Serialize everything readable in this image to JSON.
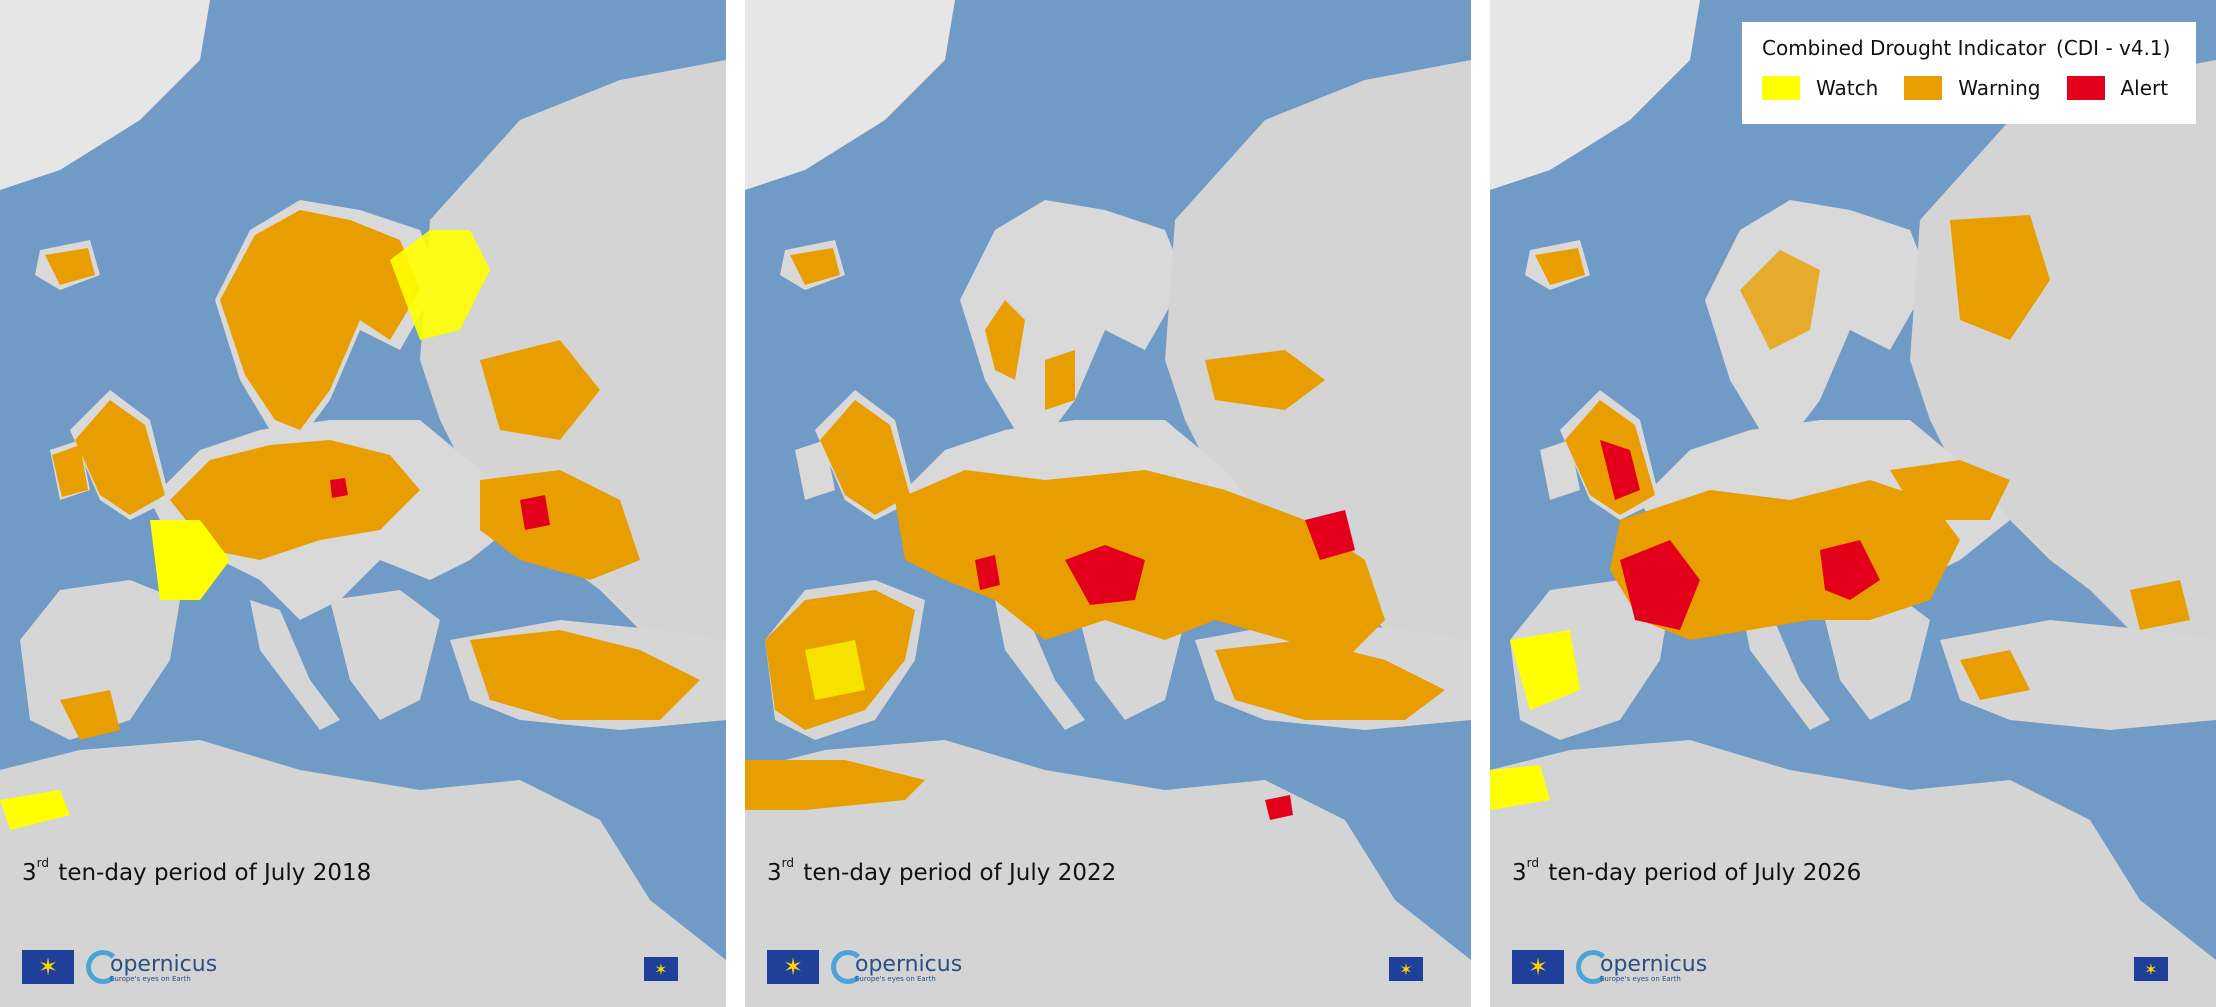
{
  "panels": [
    {
      "id": "2018",
      "caption_sup": "rd",
      "caption_prefix": "3",
      "caption_text": "ten-day period of July 2018"
    },
    {
      "id": "2022",
      "caption_sup": "rd",
      "caption_prefix": "3",
      "caption_text": "ten-day period of July 2022"
    },
    {
      "id": "2026",
      "caption_sup": "rd",
      "caption_prefix": "3",
      "caption_text": "ten-day period of July 2026"
    }
  ],
  "legend": {
    "title": "Combined Drought Indicator",
    "version": "(CDI - v4.1)",
    "items": [
      {
        "label": "Watch",
        "color": "#ffff00"
      },
      {
        "label": "Warning",
        "color": "#e89e00"
      },
      {
        "label": "Alert",
        "color": "#e2001a"
      }
    ]
  },
  "branding": {
    "copernicus": "opernicus",
    "copernicus_sub": "Europe's eyes on Earth",
    "eu_stars": "✶"
  },
  "colors": {
    "sea": "#6f9bc6",
    "land": "#d9d9d9",
    "watch": "#ffff00",
    "warning": "#e89e00",
    "alert": "#e2001a"
  }
}
